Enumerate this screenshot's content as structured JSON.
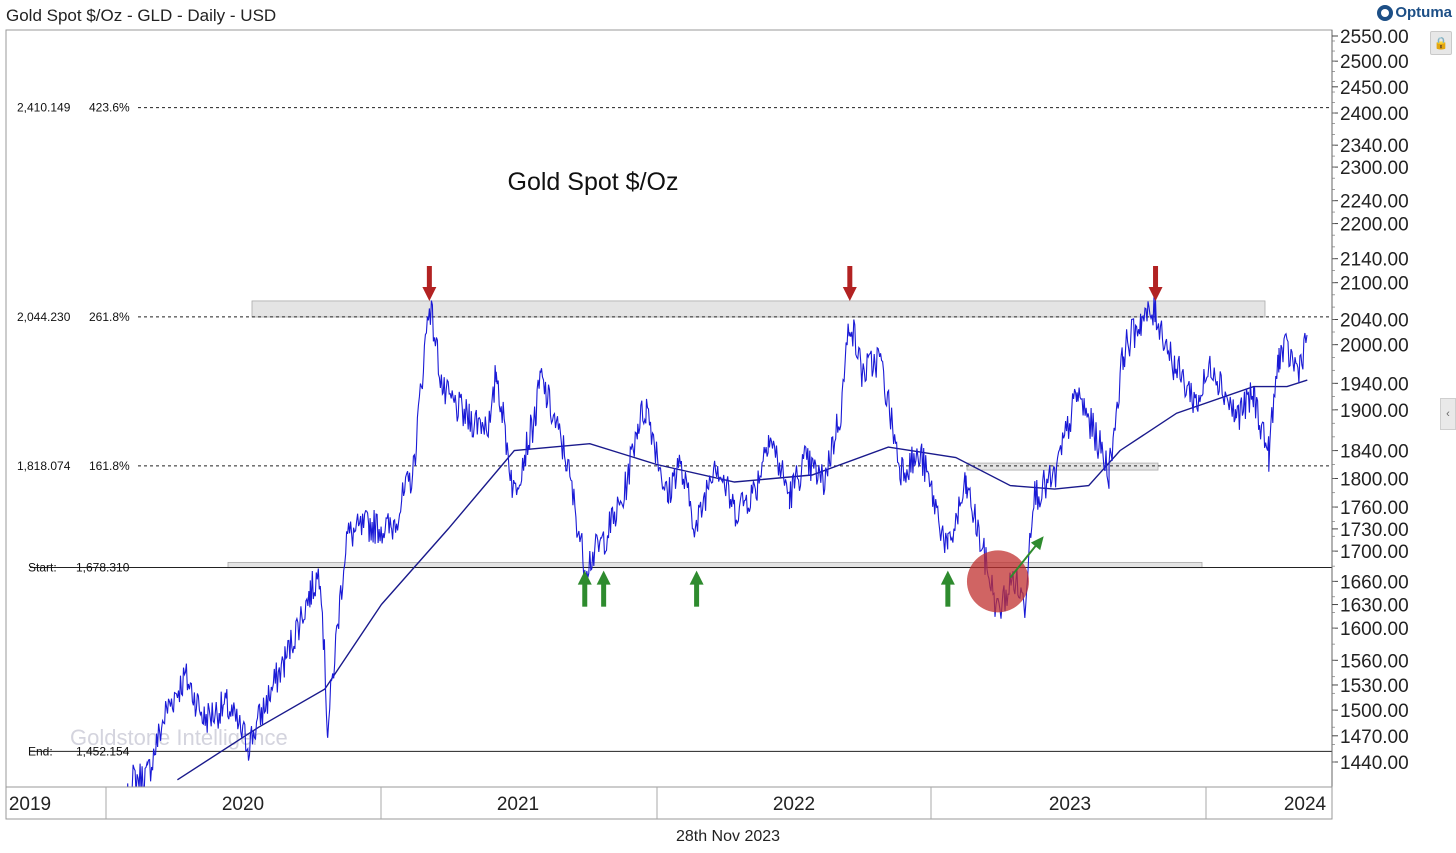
{
  "header": {
    "title": "Gold Spot $/Oz - GLD - Daily - USD",
    "brand": "Optuma"
  },
  "footer": {
    "date": "28th Nov 2023"
  },
  "icons": {
    "lock": "lock-icon",
    "collapse": "chevron-left-icon"
  },
  "colors": {
    "price": "#1a1ad6",
    "ma": "#1a1a8c",
    "up_arrow": "#2e8b2e",
    "down_arrow": "#b22222",
    "zone": "#d6d6d6",
    "circle": "#c0302f"
  },
  "chart_data": {
    "type": "line",
    "title": "Gold Spot $/Oz",
    "ylim": [
      1410,
      2560
    ],
    "y_scale": "log",
    "x_range": [
      "2019-01-01",
      "2024-01-01"
    ],
    "x_labels": [
      "2019",
      "2020",
      "2021",
      "2022",
      "2023",
      "2024"
    ],
    "y_ticks": [
      2550,
      2500,
      2450,
      2400,
      2340,
      2300,
      2240,
      2200,
      2140,
      2100,
      2040,
      2000,
      1940,
      1900,
      1840,
      1800,
      1760,
      1730,
      1700,
      1660,
      1630,
      1600,
      1560,
      1530,
      1500,
      1470,
      1440
    ],
    "y_tick_labels": [
      "2550.00",
      "2500.00",
      "2450.00",
      "2400.00",
      "2340.00",
      "2300.00",
      "2240.00",
      "2200.00",
      "2140.00",
      "2100.00",
      "2040.00",
      "2000.00",
      "1940.00",
      "1900.00",
      "1840.00",
      "1800.00",
      "1760.00",
      "1730.00",
      "1700.00",
      "1660.00",
      "1630.00",
      "1600.00",
      "1560.00",
      "1530.00",
      "1500.00",
      "1470.00",
      "1440.00"
    ],
    "fib_levels": [
      {
        "price": 2410.149,
        "label": "2,410.149",
        "pct": "423.6%",
        "style": "dotted"
      },
      {
        "price": 2044.23,
        "label": "2,044.230",
        "pct": "261.8%",
        "style": "dotted"
      },
      {
        "price": 1818.074,
        "label": "1,818.074",
        "pct": "161.8%",
        "style": "dotted"
      },
      {
        "price": 1678.31,
        "label": "1,678.310",
        "pct": "Start:",
        "style": "solid"
      },
      {
        "price": 1452.154,
        "label": "1,452.154",
        "pct": "End:",
        "style": "solid"
      }
    ],
    "series": [
      {
        "values_desc": "daily close",
        "x": [
          "2019-06-01",
          "2019-06-25",
          "2019-07-15",
          "2019-08-10",
          "2019-09-05",
          "2019-10-01",
          "2019-11-01",
          "2019-12-01",
          "2019-12-31",
          "2020-01-20",
          "2020-02-24",
          "2020-03-09",
          "2020-03-19",
          "2020-04-14",
          "2020-05-15",
          "2020-06-15",
          "2020-07-15",
          "2020-08-06",
          "2020-08-25",
          "2020-09-30",
          "2020-10-30",
          "2020-11-06",
          "2020-11-30",
          "2020-12-31",
          "2021-01-06",
          "2021-02-10",
          "2021-03-08",
          "2021-03-31",
          "2021-04-30",
          "2021-05-20",
          "2021-06-01",
          "2021-06-30",
          "2021-07-15",
          "2021-08-09",
          "2021-09-03",
          "2021-09-30",
          "2021-10-30",
          "2021-11-16",
          "2021-12-15",
          "2022-01-05",
          "2022-01-31",
          "2022-02-24",
          "2022-03-08",
          "2022-03-25",
          "2022-04-18",
          "2022-05-16",
          "2022-06-15",
          "2022-07-21",
          "2022-08-15",
          "2022-09-28",
          "2022-10-20",
          "2022-11-04",
          "2022-11-15",
          "2022-12-15",
          "2023-01-15",
          "2023-02-10",
          "2023-02-28",
          "2023-03-20",
          "2023-04-13",
          "2023-05-03",
          "2023-05-30",
          "2023-06-29",
          "2023-07-20",
          "2023-08-21",
          "2023-09-15",
          "2023-10-06",
          "2023-10-20",
          "2023-10-31",
          "2023-11-15",
          "2023-11-28"
        ],
        "values": [
          1345,
          1420,
          1425,
          1500,
          1540,
          1490,
          1505,
          1460,
          1520,
          1560,
          1645,
          1675,
          1475,
          1720,
          1735,
          1730,
          1810,
          2070,
          1925,
          1885,
          1880,
          1960,
          1780,
          1895,
          1950,
          1830,
          1680,
          1710,
          1770,
          1880,
          1905,
          1770,
          1825,
          1730,
          1830,
          1755,
          1785,
          1865,
          1775,
          1825,
          1795,
          1900,
          2045,
          1955,
          1980,
          1815,
          1830,
          1700,
          1790,
          1620,
          1665,
          1630,
          1775,
          1800,
          1925,
          1860,
          1810,
          1990,
          2040,
          2050,
          1965,
          1910,
          1970,
          1890,
          1920,
          1835,
          1985,
          1990,
          1960,
          2015
        ]
      },
      {
        "name": "",
        "values_desc": "moving average",
        "x": [
          "2019-08-25",
          "2019-12-15",
          "2020-03-15",
          "2020-06-01",
          "2020-09-01",
          "2020-12-01",
          "2021-03-15",
          "2021-06-15",
          "2021-09-30",
          "2022-01-15",
          "2022-04-30",
          "2022-08-01",
          "2022-10-15",
          "2022-12-15",
          "2023-01-31",
          "2023-03-15",
          "2023-06-01",
          "2023-09-15",
          "2023-10-31",
          "2023-11-28"
        ],
        "values": [
          1420,
          1480,
          1525,
          1630,
          1730,
          1840,
          1850,
          1820,
          1795,
          1805,
          1845,
          1830,
          1790,
          1785,
          1790,
          1840,
          1895,
          1935,
          1935,
          1945
        ]
      }
    ],
    "annotations": {
      "top_zone": [
        2044,
        2070
      ],
      "mid_zone": [
        1812,
        1822
      ],
      "bottom_zone": [
        1678,
        1685
      ],
      "down_arrows": [
        "2020-08-06",
        "2022-03-08",
        "2023-05-03"
      ],
      "up_arrows": [
        "2021-03-08",
        "2021-04-03",
        "2021-08-09",
        "2022-07-21"
      ],
      "circle": {
        "x": "2022-09-28",
        "y": 1660
      },
      "breakout_arrow": {
        "from": [
          "2022-10-15",
          1665
        ],
        "to": [
          "2022-11-30",
          1720
        ]
      }
    },
    "grid": false,
    "legend": "none",
    "watermark": "Goldstone Intelligence"
  }
}
